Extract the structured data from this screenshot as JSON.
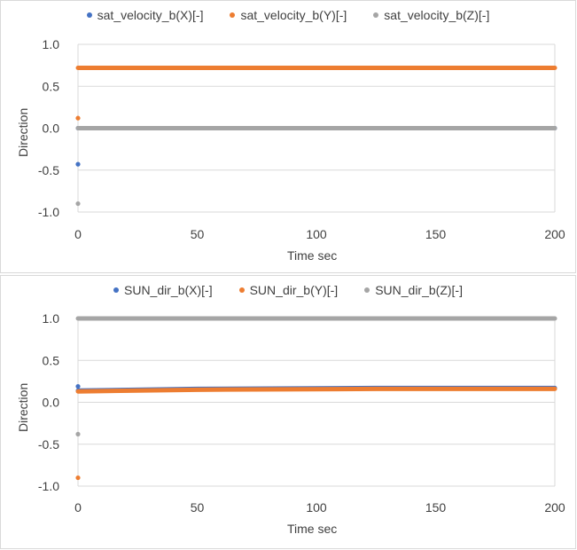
{
  "chart_data": [
    {
      "type": "scatter",
      "title": "",
      "xlabel": "Time sec",
      "ylabel": "Direction",
      "xlim": [
        0,
        200
      ],
      "ylim": [
        -1.0,
        1.0
      ],
      "xticks": [
        "0",
        "50",
        "100",
        "150",
        "200"
      ],
      "yticks": [
        "1.0",
        "0.5",
        "0.0",
        "-0.5",
        "-1.0"
      ],
      "grid": "horizontal",
      "legend_position": "top",
      "series": [
        {
          "name": "sat_velocity_b(X)[-]",
          "color": "#4472c4",
          "points": [
            [
              0,
              -0.43
            ]
          ],
          "line": {
            "x": [
              0,
              200
            ],
            "y": [
              0.0,
              0.0
            ]
          }
        },
        {
          "name": "sat_velocity_b(Y)[-]",
          "color": "#ed7d31",
          "points": [
            [
              0,
              0.12
            ]
          ],
          "line": {
            "x": [
              0,
              200
            ],
            "y": [
              0.72,
              0.72
            ]
          }
        },
        {
          "name": "sat_velocity_b(Z)[-]",
          "color": "#a5a5a5",
          "points": [
            [
              0,
              -0.9
            ]
          ],
          "line": {
            "x": [
              0,
              200
            ],
            "y": [
              0.0,
              0.0
            ]
          }
        }
      ]
    },
    {
      "type": "scatter",
      "title": "",
      "xlabel": "Time sec",
      "ylabel": "Direction",
      "xlim": [
        0,
        200
      ],
      "ylim": [
        -1.0,
        1.0
      ],
      "xticks": [
        "0",
        "50",
        "100",
        "150",
        "200"
      ],
      "yticks": [
        "1.0",
        "0.5",
        "0.0",
        "-0.5",
        "-1.0"
      ],
      "grid": "horizontal",
      "legend_position": "top",
      "series": [
        {
          "name": "SUN_dir_b(X)[-]",
          "color": "#4472c4",
          "points": [
            [
              0,
              0.19
            ]
          ],
          "line": {
            "x": [
              0,
              50,
              125,
              200
            ],
            "y": [
              0.14,
              0.16,
              0.17,
              0.17
            ]
          }
        },
        {
          "name": "SUN_dir_b(Y)[-]",
          "color": "#ed7d31",
          "points": [
            [
              0,
              -0.9
            ]
          ],
          "line": {
            "x": [
              0,
              50,
              125,
              200
            ],
            "y": [
              0.13,
              0.15,
              0.16,
              0.16
            ]
          }
        },
        {
          "name": "SUN_dir_b(Z)[-]",
          "color": "#a5a5a5",
          "points": [
            [
              0,
              -0.38
            ]
          ],
          "line": {
            "x": [
              0,
              200
            ],
            "y": [
              1.0,
              1.0
            ]
          }
        }
      ]
    }
  ]
}
